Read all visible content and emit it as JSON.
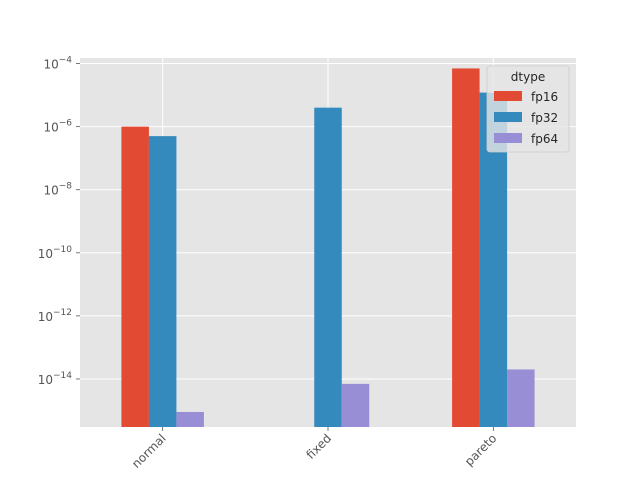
{
  "chart_data": {
    "type": "bar",
    "title": "",
    "xlabel": "",
    "ylabel": "",
    "yscale": "log",
    "ylim": [
      3e-16,
      0.00015
    ],
    "grid": true,
    "legend_title": "dtype",
    "legend_position": "top-right",
    "categories": [
      "normal",
      "fixed",
      "pareto"
    ],
    "series": [
      {
        "name": "fp16",
        "color": "#E24A33",
        "values": [
          1e-06,
          null,
          7e-05
        ]
      },
      {
        "name": "fp32",
        "color": "#348ABD",
        "values": [
          5e-07,
          4e-06,
          1.2e-05
        ]
      },
      {
        "name": "fp64",
        "color": "#988ED5",
        "values": [
          9e-16,
          7e-15,
          2e-14
        ]
      }
    ],
    "y_ticks": [
      {
        "value": 1e-14,
        "base": "10",
        "exp": "−14"
      },
      {
        "value": 1e-12,
        "base": "10",
        "exp": "−12"
      },
      {
        "value": 1e-10,
        "base": "10",
        "exp": "−10"
      },
      {
        "value": 1e-08,
        "base": "10",
        "exp": "−8"
      },
      {
        "value": 1e-06,
        "base": "10",
        "exp": "−6"
      },
      {
        "value": 0.0001,
        "base": "10",
        "exp": "−4"
      }
    ]
  }
}
